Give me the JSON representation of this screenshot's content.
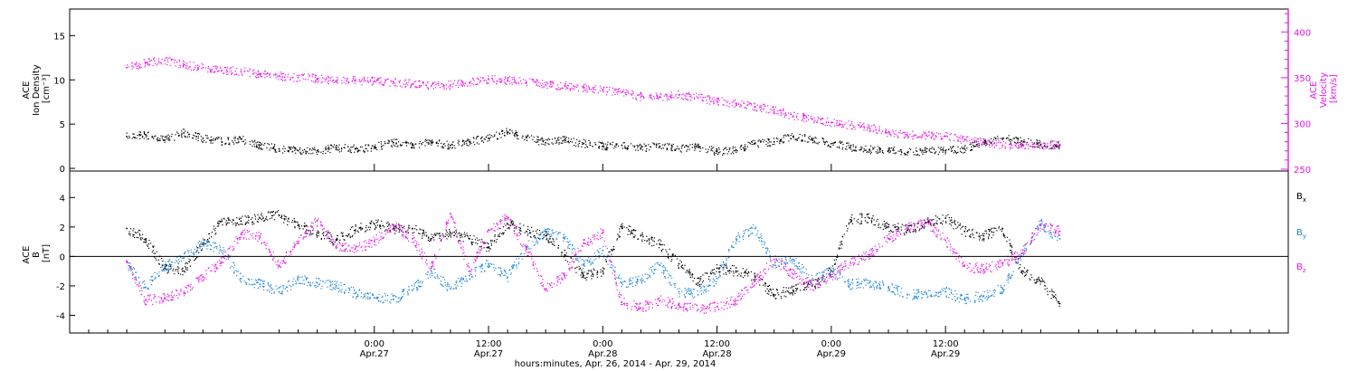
{
  "colors": {
    "black": "#000000",
    "magenta": "#e815e8",
    "blue": "#1f86d8",
    "frame": "#000000"
  },
  "chart_data": [
    {
      "type": "scatter",
      "panel": "top",
      "left_axis": {
        "label_lines": [
          "ACE",
          "Ion Density",
          "[cm⁻³]"
        ],
        "ylim": [
          -0.3,
          18
        ],
        "ticks": [
          0,
          5,
          10,
          15
        ]
      },
      "right_axis": {
        "label_lines": [
          "ACE",
          "Velocity",
          "[km/s]"
        ],
        "ylim": [
          248,
          425
        ],
        "ticks": [
          250,
          300,
          350,
          400
        ],
        "color": "#e815e8"
      },
      "series": [
        {
          "name": "",
          "axis": "left",
          "color": "#000000",
          "points": [
            [
              -26,
              3.6
            ],
            [
              -24,
              3.8
            ],
            [
              -22,
              3.2
            ],
            [
              -20,
              4.0
            ],
            [
              -18,
              3.4
            ],
            [
              -16,
              3.0
            ],
            [
              -14,
              3.3
            ],
            [
              -12,
              2.6
            ],
            [
              -10,
              2.2
            ],
            [
              -8,
              2.0
            ],
            [
              -6,
              2.0
            ],
            [
              -4,
              2.3
            ],
            [
              -2,
              2.2
            ],
            [
              0,
              2.4
            ],
            [
              2,
              2.9
            ],
            [
              4,
              2.7
            ],
            [
              6,
              2.9
            ],
            [
              8,
              2.6
            ],
            [
              10,
              3.0
            ],
            [
              12,
              3.4
            ],
            [
              14,
              4.1
            ],
            [
              16,
              3.5
            ],
            [
              18,
              2.9
            ],
            [
              20,
              3.2
            ],
            [
              22,
              2.8
            ],
            [
              24,
              2.5
            ],
            [
              26,
              2.6
            ],
            [
              28,
              2.3
            ],
            [
              30,
              2.5
            ],
            [
              32,
              2.2
            ],
            [
              34,
              2.4
            ],
            [
              36,
              1.9
            ],
            [
              38,
              2.1
            ],
            [
              40,
              2.8
            ],
            [
              42,
              3.0
            ],
            [
              44,
              3.6
            ],
            [
              46,
              3.3
            ],
            [
              48,
              2.8
            ],
            [
              50,
              2.4
            ],
            [
              52,
              2.1
            ],
            [
              54,
              2.0
            ],
            [
              56,
              1.8
            ],
            [
              58,
              1.9
            ],
            [
              60,
              2.0
            ],
            [
              62,
              2.2
            ],
            [
              64,
              2.9
            ],
            [
              66,
              3.4
            ],
            [
              68,
              3.1
            ],
            [
              70,
              2.7
            ],
            [
              72,
              2.6
            ]
          ]
        },
        {
          "name": "",
          "axis": "right",
          "color": "#e815e8",
          "points": [
            [
              -26,
              361
            ],
            [
              -24,
              366
            ],
            [
              -22,
              369
            ],
            [
              -20,
              364
            ],
            [
              -18,
              361
            ],
            [
              -16,
              358
            ],
            [
              -14,
              357
            ],
            [
              -12,
              354
            ],
            [
              -10,
              352
            ],
            [
              -8,
              350
            ],
            [
              -6,
              349
            ],
            [
              -4,
              347
            ],
            [
              -2,
              347
            ],
            [
              0,
              346
            ],
            [
              2,
              345
            ],
            [
              4,
              343
            ],
            [
              6,
              341
            ],
            [
              8,
              342
            ],
            [
              10,
              345
            ],
            [
              12,
              348
            ],
            [
              14,
              347
            ],
            [
              16,
              345
            ],
            [
              18,
              342
            ],
            [
              20,
              341
            ],
            [
              22,
              339
            ],
            [
              24,
              336
            ],
            [
              26,
              334
            ],
            [
              28,
              329
            ],
            [
              30,
              329
            ],
            [
              32,
              331
            ],
            [
              34,
              328
            ],
            [
              36,
              324
            ],
            [
              38,
              322
            ],
            [
              40,
              318
            ],
            [
              42,
              315
            ],
            [
              44,
              308
            ],
            [
              46,
              305
            ],
            [
              48,
              301
            ],
            [
              50,
              298
            ],
            [
              52,
              295
            ],
            [
              54,
              290
            ],
            [
              56,
              287
            ],
            [
              58,
              287
            ],
            [
              60,
              286
            ],
            [
              62,
              282
            ],
            [
              64,
              279
            ],
            [
              66,
              276
            ],
            [
              68,
              275
            ],
            [
              70,
              276
            ],
            [
              72,
              277
            ]
          ]
        }
      ]
    },
    {
      "type": "scatter",
      "panel": "bottom",
      "left_axis": {
        "label_lines": [
          "ACE",
          "B",
          "[nT]"
        ],
        "ylim": [
          -5.2,
          5.8
        ],
        "ticks": [
          -4,
          -2,
          0,
          2,
          4
        ]
      },
      "legend": {
        "position": "right",
        "entries": [
          {
            "main": "B",
            "sub": "x",
            "color": "#000000"
          },
          {
            "main": "B",
            "sub": "y",
            "color": "#1f86d8"
          },
          {
            "main": "B",
            "sub": "z",
            "color": "#e815e8"
          }
        ]
      },
      "series": [
        {
          "name": "Bx",
          "color": "#000000",
          "points": [
            [
              -26,
              1.9
            ],
            [
              -24,
              1.2
            ],
            [
              -22,
              -0.8
            ],
            [
              -20,
              -1.0
            ],
            [
              -18,
              0.8
            ],
            [
              -16,
              2.4
            ],
            [
              -14,
              2.4
            ],
            [
              -12,
              2.6
            ],
            [
              -10,
              2.8
            ],
            [
              -8,
              2.1
            ],
            [
              -6,
              1.6
            ],
            [
              -4,
              1.1
            ],
            [
              -2,
              1.8
            ],
            [
              0,
              2.2
            ],
            [
              2,
              1.9
            ],
            [
              4,
              1.9
            ],
            [
              6,
              1.2
            ],
            [
              8,
              1.6
            ],
            [
              10,
              1.2
            ],
            [
              12,
              0.6
            ],
            [
              14,
              2.2
            ],
            [
              16,
              1.7
            ],
            [
              18,
              1.4
            ],
            [
              20,
              0.1
            ],
            [
              22,
              -1.3
            ],
            [
              24,
              -1.0
            ],
            [
              26,
              2.0
            ],
            [
              28,
              1.4
            ],
            [
              30,
              0.8
            ],
            [
              32,
              -0.5
            ],
            [
              34,
              -1.8
            ],
            [
              36,
              -0.8
            ],
            [
              38,
              -1.0
            ],
            [
              40,
              -1.4
            ],
            [
              42,
              -2.6
            ],
            [
              44,
              -2.3
            ],
            [
              46,
              -2.0
            ],
            [
              48,
              -1.0
            ],
            [
              50,
              2.5
            ],
            [
              52,
              2.6
            ],
            [
              54,
              2.0
            ],
            [
              56,
              1.8
            ],
            [
              58,
              2.3
            ],
            [
              60,
              2.6
            ],
            [
              62,
              1.7
            ],
            [
              64,
              1.4
            ],
            [
              66,
              1.9
            ],
            [
              68,
              -1.0
            ],
            [
              70,
              -1.7
            ],
            [
              72,
              -3.2
            ]
          ]
        },
        {
          "name": "By",
          "color": "#1f86d8",
          "points": [
            [
              -26,
              -0.4
            ],
            [
              -24,
              -2.1
            ],
            [
              -22,
              -0.7
            ],
            [
              -20,
              -0.1
            ],
            [
              -18,
              0.9
            ],
            [
              -16,
              0.4
            ],
            [
              -14,
              -1.5
            ],
            [
              -12,
              -1.9
            ],
            [
              -10,
              -2.4
            ],
            [
              -8,
              -1.6
            ],
            [
              -6,
              -1.8
            ],
            [
              -4,
              -2.0
            ],
            [
              -2,
              -2.5
            ],
            [
              0,
              -2.8
            ],
            [
              2,
              -2.9
            ],
            [
              4,
              -2.3
            ],
            [
              6,
              -1.0
            ],
            [
              8,
              -2.2
            ],
            [
              10,
              -1.3
            ],
            [
              12,
              -0.5
            ],
            [
              14,
              -1.4
            ],
            [
              16,
              0.6
            ],
            [
              18,
              1.6
            ],
            [
              20,
              1.2
            ],
            [
              22,
              -0.6
            ],
            [
              24,
              0.4
            ],
            [
              26,
              -1.8
            ],
            [
              28,
              -1.6
            ],
            [
              30,
              -0.6
            ],
            [
              32,
              -2.4
            ],
            [
              34,
              -2.6
            ],
            [
              36,
              -1.5
            ],
            [
              38,
              1.2
            ],
            [
              40,
              1.9
            ],
            [
              42,
              -0.6
            ],
            [
              44,
              -0.2
            ],
            [
              46,
              -1.6
            ],
            [
              48,
              -1.0
            ],
            [
              50,
              -1.9
            ],
            [
              52,
              -1.8
            ],
            [
              54,
              -2.1
            ],
            [
              56,
              -2.6
            ],
            [
              58,
              -2.5
            ],
            [
              60,
              -2.4
            ],
            [
              62,
              -2.9
            ],
            [
              64,
              -2.7
            ],
            [
              66,
              -2.2
            ],
            [
              68,
              0.2
            ],
            [
              70,
              2.2
            ],
            [
              72,
              1.2
            ]
          ]
        },
        {
          "name": "Bz",
          "color": "#e815e8",
          "points": [
            [
              -26,
              -0.3
            ],
            [
              -24,
              -3.0
            ],
            [
              -22,
              -2.8
            ],
            [
              -20,
              -2.5
            ],
            [
              -18,
              -1.4
            ],
            [
              -16,
              -0.4
            ],
            [
              -14,
              1.5
            ],
            [
              -12,
              1.3
            ],
            [
              -10,
              -0.6
            ],
            [
              -8,
              0.9
            ],
            [
              -6,
              2.4
            ],
            [
              -4,
              0.7
            ],
            [
              -2,
              0.5
            ],
            [
              0,
              1.0
            ],
            [
              2,
              2.1
            ],
            [
              4,
              1.2
            ],
            [
              6,
              -0.8
            ],
            [
              8,
              2.9
            ],
            [
              10,
              -1.0
            ],
            [
              12,
              1.8
            ],
            [
              14,
              2.6
            ],
            [
              16,
              0.5
            ],
            [
              18,
              -2.2
            ],
            [
              20,
              -1.3
            ],
            [
              22,
              0.9
            ],
            [
              24,
              1.6
            ],
            [
              26,
              -3.1
            ],
            [
              28,
              -3.5
            ],
            [
              30,
              -3.0
            ],
            [
              32,
              -3.3
            ],
            [
              34,
              -3.6
            ],
            [
              36,
              -3.4
            ],
            [
              38,
              -3.0
            ],
            [
              40,
              -1.7
            ],
            [
              42,
              -0.2
            ],
            [
              44,
              -1.2
            ],
            [
              46,
              -2.0
            ],
            [
              48,
              -1.4
            ],
            [
              50,
              -0.4
            ],
            [
              52,
              0.1
            ],
            [
              54,
              1.2
            ],
            [
              56,
              1.9
            ],
            [
              58,
              2.3
            ],
            [
              60,
              1.1
            ],
            [
              62,
              -0.6
            ],
            [
              64,
              -0.9
            ],
            [
              66,
              -0.5
            ],
            [
              68,
              0.2
            ],
            [
              70,
              2.1
            ],
            [
              72,
              1.7
            ]
          ]
        }
      ]
    }
  ],
  "x_axis": {
    "xlim": [
      -32,
      96
    ],
    "ticks": [
      {
        "h": 0,
        "time": "0:00",
        "date": "Apr.27"
      },
      {
        "h": 12,
        "time": "12:00",
        "date": "Apr.27"
      },
      {
        "h": 24,
        "time": "0:00",
        "date": "Apr.28"
      },
      {
        "h": 36,
        "time": "12:00",
        "date": "Apr.28"
      },
      {
        "h": 48,
        "time": "0:00",
        "date": "Apr.29"
      },
      {
        "h": 60,
        "time": "12:00",
        "date": "Apr.29"
      }
    ],
    "title": "hours:minutes, Apr. 26, 2014 - Apr. 29, 2014"
  }
}
